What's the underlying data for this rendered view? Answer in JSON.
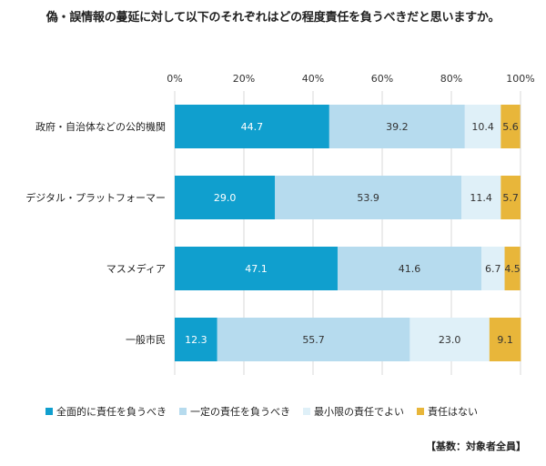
{
  "chart_data": {
    "type": "bar",
    "orientation": "horizontal",
    "stacked": true,
    "title": "偽・誤情報の蔓延に対して以下のそれぞれはどの程度責任を負うべきだと思いますか。",
    "categories": [
      "政府・自治体などの公的機関",
      "デジタル・プラットフォーマー",
      "マスメディア",
      "一般市民"
    ],
    "series": [
      {
        "name": "全面的に責任を負うべき",
        "color": "#109fce",
        "label_color": "#ffffff",
        "values": [
          44.7,
          29.0,
          47.1,
          12.3
        ]
      },
      {
        "name": "一定の責任を負うべき",
        "color": "#b6dbee",
        "label_color": "#333333",
        "values": [
          39.2,
          53.9,
          41.6,
          55.7
        ]
      },
      {
        "name": "最小限の責任でよい",
        "color": "#dff0f8",
        "label_color": "#333333",
        "values": [
          10.4,
          11.4,
          6.7,
          23.0
        ]
      },
      {
        "name": "責任はない",
        "color": "#e8b63a",
        "label_color": "#333333",
        "values": [
          5.6,
          5.7,
          4.5,
          9.1
        ]
      }
    ],
    "x_ticks": [
      "0%",
      "20%",
      "40%",
      "60%",
      "80%",
      "100%"
    ],
    "xlim": [
      0,
      100
    ],
    "grid": true,
    "legend_position": "bottom",
    "base_note": "【基数：対象者全員】"
  }
}
